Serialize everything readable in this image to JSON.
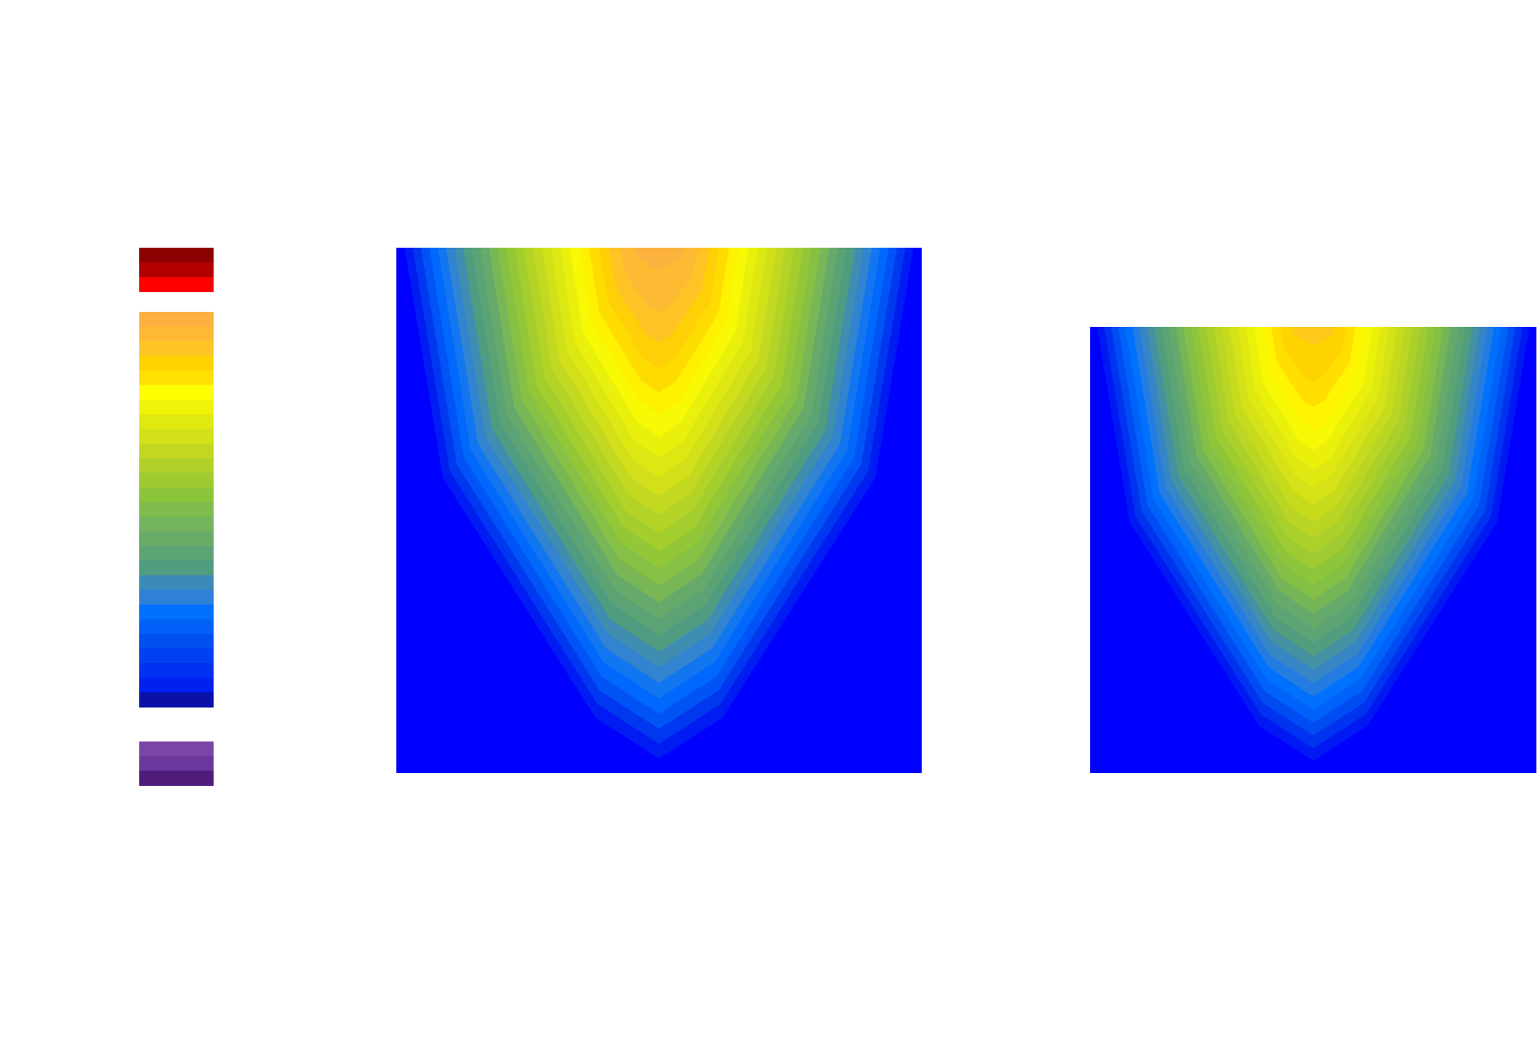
{
  "chart_data": [
    {
      "type": "contour",
      "role": "colorbar",
      "title": "",
      "labels": [],
      "colormap": {
        "over_colors": [
          "#8b0000",
          "#b20000",
          "#ff0000"
        ],
        "main_colors": [
          "#fbb040",
          "#fdb934",
          "#ffc425",
          "#ffd200",
          "#ffe000",
          "#ffff00",
          "#eef308",
          "#e0ea10",
          "#d2e118",
          "#c2d820",
          "#b0d228",
          "#9fcb30",
          "#8cc43c",
          "#80bc4c",
          "#74b45c",
          "#68ac68",
          "#5ca474",
          "#509c80",
          "#3c8ab8",
          "#2e80d8",
          "#0070ff",
          "#0060f8",
          "#0050f0",
          "#0040f0",
          "#0030f0",
          "#0020f0"
        ],
        "under_colors": [
          "#0a10a8"
        ],
        "extra_colors": [
          "#7a44a8",
          "#6a389c",
          "#501c7c"
        ]
      }
    },
    {
      "type": "contour",
      "role": "panel-left",
      "title": "",
      "xlabel": "",
      "ylabel": "",
      "peak_fraction": 0.62,
      "levels": 26
    },
    {
      "type": "contour",
      "role": "panel-right",
      "title": "",
      "xlabel": "",
      "ylabel": "",
      "peak_fraction": 0.45,
      "levels": 26
    }
  ]
}
